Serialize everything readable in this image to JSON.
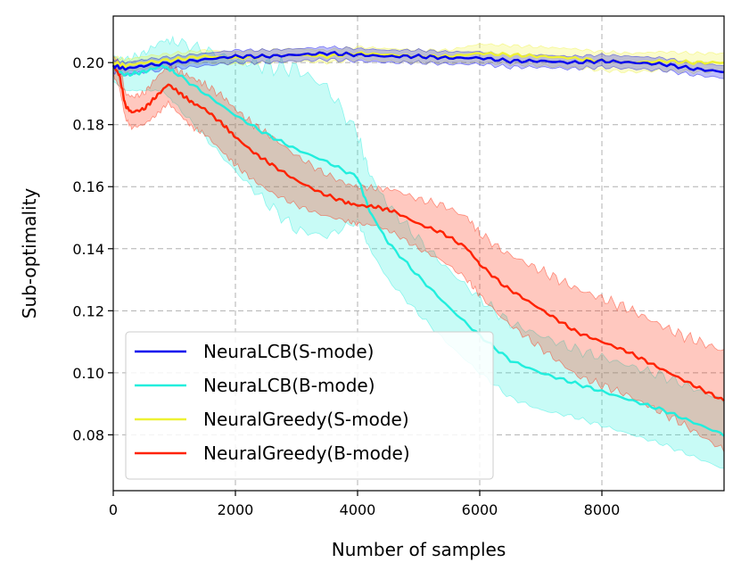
{
  "chart_data": {
    "type": "line",
    "title": "",
    "xlabel": "Number of samples",
    "ylabel": "Sub-optimality",
    "xlim": [
      0,
      10000
    ],
    "ylim": [
      0.062,
      0.215
    ],
    "xticks": [
      0,
      2000,
      4000,
      6000,
      8000
    ],
    "xtick_labels": [
      "0",
      "2000",
      "4000",
      "6000",
      "8000"
    ],
    "yticks": [
      0.08,
      0.1,
      0.12,
      0.14,
      0.16,
      0.18,
      0.2
    ],
    "ytick_labels": [
      "0.08",
      "0.10",
      "0.12",
      "0.14",
      "0.16",
      "0.18",
      "0.20"
    ],
    "grid": true,
    "legend_position": "lower-left",
    "series": [
      {
        "name": "NeuraLCB(S-mode)",
        "color": "#0000ee",
        "x": [
          0,
          200,
          500,
          1000,
          1500,
          2000,
          2500,
          3000,
          3500,
          4000,
          4500,
          5000,
          5500,
          6000,
          6500,
          7000,
          7500,
          8000,
          8500,
          9000,
          9500,
          10000
        ],
        "y": [
          0.199,
          0.198,
          0.199,
          0.2,
          0.201,
          0.202,
          0.202,
          0.2025,
          0.203,
          0.2025,
          0.202,
          0.202,
          0.2015,
          0.2015,
          0.2005,
          0.2005,
          0.2,
          0.2005,
          0.2,
          0.1995,
          0.198,
          0.197
        ],
        "band": [
          0.002,
          0.002,
          0.002,
          0.002,
          0.002,
          0.002,
          0.002,
          0.002,
          0.002,
          0.002,
          0.002,
          0.002,
          0.002,
          0.002,
          0.002,
          0.002,
          0.002,
          0.002,
          0.002,
          0.002,
          0.002,
          0.002
        ]
      },
      {
        "name": "NeuraLCB(B-mode)",
        "color": "#22eedd",
        "x": [
          0,
          200,
          500,
          800,
          1000,
          1500,
          2000,
          2500,
          3000,
          3500,
          4000,
          4200,
          4500,
          5000,
          5500,
          6000,
          6500,
          7000,
          7500,
          8000,
          8500,
          9000,
          9500,
          10000
        ],
        "y": [
          0.198,
          0.196,
          0.197,
          0.199,
          0.197,
          0.19,
          0.183,
          0.177,
          0.172,
          0.168,
          0.163,
          0.152,
          0.142,
          0.131,
          0.121,
          0.112,
          0.104,
          0.1,
          0.097,
          0.094,
          0.091,
          0.088,
          0.084,
          0.08
        ],
        "band": [
          0.004,
          0.005,
          0.006,
          0.008,
          0.01,
          0.014,
          0.018,
          0.022,
          0.026,
          0.024,
          0.014,
          0.012,
          0.012,
          0.012,
          0.012,
          0.012,
          0.012,
          0.012,
          0.011,
          0.011,
          0.011,
          0.011,
          0.011,
          0.011
        ]
      },
      {
        "name": "NeuralGreedy(S-mode)",
        "color": "#eef233",
        "x": [
          0,
          200,
          500,
          1000,
          1500,
          2000,
          2500,
          3000,
          3500,
          4000,
          4500,
          5000,
          5500,
          6000,
          6500,
          7000,
          7500,
          8000,
          8500,
          9000,
          9500,
          10000
        ],
        "y": [
          0.2,
          0.199,
          0.2,
          0.201,
          0.202,
          0.2015,
          0.202,
          0.2025,
          0.202,
          0.203,
          0.2025,
          0.202,
          0.202,
          0.203,
          0.2025,
          0.202,
          0.2015,
          0.2005,
          0.2,
          0.2005,
          0.2,
          0.2
        ],
        "band": [
          0.002,
          0.002,
          0.002,
          0.002,
          0.002,
          0.002,
          0.002,
          0.002,
          0.002,
          0.002,
          0.002,
          0.002,
          0.002,
          0.003,
          0.003,
          0.003,
          0.003,
          0.003,
          0.003,
          0.003,
          0.003,
          0.003
        ]
      },
      {
        "name": "NeuralGreedy(B-mode)",
        "color": "#ff2200",
        "x": [
          0,
          100,
          200,
          300,
          500,
          700,
          900,
          1100,
          1300,
          1500,
          1800,
          2000,
          2300,
          2600,
          3000,
          3400,
          3800,
          4000,
          4300,
          4600,
          5000,
          5400,
          5800,
          6000,
          6400,
          6800,
          7200,
          7600,
          8000,
          8400,
          8800,
          9200,
          9600,
          10000
        ],
        "y": [
          0.199,
          0.196,
          0.186,
          0.184,
          0.185,
          0.189,
          0.193,
          0.19,
          0.187,
          0.185,
          0.18,
          0.176,
          0.171,
          0.167,
          0.162,
          0.158,
          0.155,
          0.154,
          0.1535,
          0.152,
          0.148,
          0.145,
          0.14,
          0.135,
          0.128,
          0.123,
          0.118,
          0.113,
          0.11,
          0.107,
          0.103,
          0.099,
          0.095,
          0.091
        ],
        "band": [
          0.003,
          0.004,
          0.004,
          0.005,
          0.005,
          0.006,
          0.006,
          0.007,
          0.008,
          0.008,
          0.009,
          0.009,
          0.009,
          0.009,
          0.008,
          0.007,
          0.006,
          0.006,
          0.006,
          0.007,
          0.008,
          0.009,
          0.01,
          0.01,
          0.011,
          0.012,
          0.013,
          0.014,
          0.014,
          0.014,
          0.014,
          0.014,
          0.015,
          0.016
        ]
      }
    ]
  }
}
